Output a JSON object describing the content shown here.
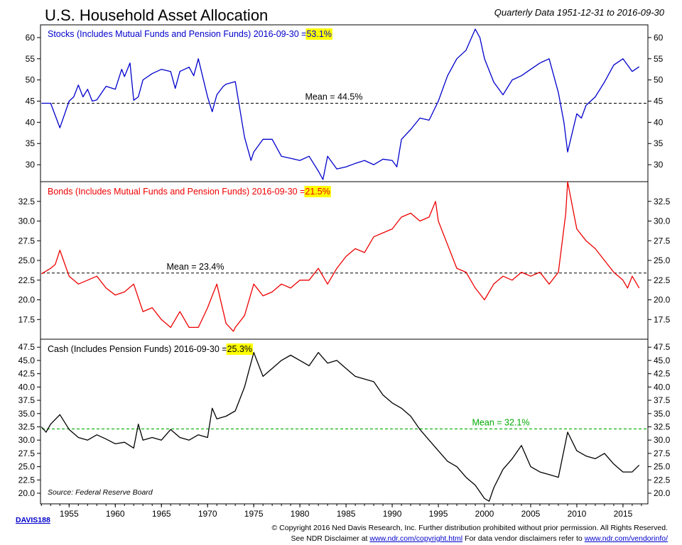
{
  "header": {
    "title": "U.S. Household Asset Allocation",
    "subtitle": "Quarterly Data 1951-12-31 to 2016-09-30"
  },
  "chart_data": [
    {
      "type": "line",
      "name": "stocks",
      "label_prefix": "Stocks (Includes Mutual Funds and Pension Funds) 2016-09-30 = ",
      "last_value_label": "53.1%",
      "color": "#0000cc",
      "ylim": [
        26,
        63
      ],
      "yticks": [
        "30",
        "35",
        "40",
        "45",
        "50",
        "55",
        "60"
      ],
      "mean": 44.5,
      "mean_label": "Mean = 44.5%",
      "mean_color": "#000000",
      "x": [
        1952,
        1953,
        1954,
        1955,
        1955.5,
        1956,
        1956.5,
        1957,
        1957.5,
        1958,
        1959,
        1960,
        1960.7,
        1961,
        1961.6,
        1962,
        1962.5,
        1963,
        1964,
        1965,
        1966,
        1966.5,
        1967,
        1968,
        1968.5,
        1969,
        1969.5,
        1970,
        1970.5,
        1971,
        1971.7,
        1972,
        1973,
        1974,
        1974.7,
        1975,
        1976,
        1977,
        1978,
        1979,
        1980,
        1981,
        1982,
        1982.5,
        1983,
        1984,
        1985,
        1986,
        1987,
        1988,
        1989,
        1990,
        1990.5,
        1991,
        1992,
        1993,
        1994,
        1995,
        1996,
        1997,
        1998,
        1999,
        1999.5,
        2000,
        2001,
        2002,
        2003,
        2004,
        2005,
        2006,
        2007,
        2008,
        2008.6,
        2009,
        2010,
        2010.5,
        2011,
        2012,
        2013,
        2014,
        2015,
        2016,
        2016.75
      ],
      "y": [
        44.5,
        44.5,
        38.7,
        45,
        46,
        48.8,
        46,
        47.8,
        45,
        45.3,
        48.5,
        47.8,
        52.5,
        50.8,
        54,
        45.2,
        46,
        50,
        51.5,
        52.5,
        52,
        48,
        52,
        53,
        51,
        55,
        50.5,
        46,
        42.5,
        46.5,
        48.5,
        49,
        49.6,
        36.5,
        31,
        33,
        36,
        36,
        32,
        31.5,
        31,
        32,
        28.5,
        26.5,
        32,
        29,
        29.5,
        30.3,
        31,
        30,
        31.3,
        31,
        29.5,
        36,
        38.3,
        41,
        40.5,
        45,
        51,
        55,
        57,
        62,
        60,
        55,
        49.5,
        46.5,
        50,
        51,
        52.5,
        54,
        55,
        47,
        40,
        33,
        42,
        41,
        44,
        46,
        49.5,
        53.5,
        55,
        52,
        53.1
      ]
    },
    {
      "type": "line",
      "name": "bonds",
      "label_prefix": "Bonds (Includes Mutual Funds and Pension Funds) 2016-09-30 = ",
      "last_value_label": "21.5%",
      "color": "#ee0000",
      "ylim": [
        15,
        35
      ],
      "yticks": [
        "17.5",
        "20.0",
        "22.5",
        "25.0",
        "27.5",
        "30.0",
        "32.5"
      ],
      "mean": 23.4,
      "mean_label": "Mean = 23.4%",
      "mean_color": "#000000",
      "x": [
        1952,
        1953,
        1953.5,
        1954,
        1955,
        1956,
        1957,
        1958,
        1959,
        1960,
        1961,
        1962,
        1963,
        1964,
        1965,
        1966,
        1967,
        1968,
        1969,
        1970,
        1970.5,
        1971,
        1972,
        1972.8,
        1973,
        1974,
        1975,
        1976,
        1977,
        1978,
        1979,
        1980,
        1981,
        1982,
        1983,
        1984,
        1985,
        1986,
        1987,
        1988,
        1989,
        1990,
        1991,
        1992,
        1993,
        1994,
        1994.7,
        1995,
        1996,
        1997,
        1998,
        1999,
        2000,
        2001,
        2002,
        2003,
        2004,
        2005,
        2006,
        2007,
        2008,
        2008.8,
        2009,
        2009.5,
        2010,
        2011,
        2012,
        2013,
        2014,
        2015,
        2015.5,
        2016,
        2016.75
      ],
      "y": [
        23.3,
        24,
        24.5,
        26.3,
        23,
        22,
        22.5,
        23,
        21.5,
        20.6,
        21,
        22,
        18.5,
        19,
        17.5,
        16.5,
        18.5,
        16.5,
        16.5,
        19,
        20.5,
        22,
        17,
        16,
        16.5,
        18,
        22,
        20.5,
        21,
        22,
        21.5,
        22.5,
        22.5,
        24,
        22,
        24,
        25.5,
        26.5,
        26,
        28,
        28.5,
        29,
        30.5,
        31,
        30,
        30.5,
        32.5,
        30,
        27,
        24,
        23.5,
        21.5,
        20,
        22,
        23,
        22.5,
        23.5,
        23,
        23.5,
        22,
        23.5,
        31,
        35,
        32,
        29,
        27.5,
        26.5,
        25,
        23.5,
        22.5,
        21.5,
        23,
        21.5
      ]
    },
    {
      "type": "line",
      "name": "cash",
      "label_prefix": "Cash (Includes Pension Funds) 2016-09-30 = ",
      "last_value_label": "25.3%",
      "color": "#000000",
      "ylim": [
        18,
        49
      ],
      "yticks": [
        "20.0",
        "22.5",
        "25.0",
        "27.5",
        "30.0",
        "32.5",
        "35.0",
        "37.5",
        "40.0",
        "42.5",
        "45.0",
        "47.5"
      ],
      "mean": 32.1,
      "mean_label": "Mean = 32.1%",
      "mean_color": "#00aa00",
      "x": [
        1952,
        1952.5,
        1953,
        1954,
        1955,
        1956,
        1957,
        1958,
        1959,
        1960,
        1961,
        1962,
        1962.5,
        1963,
        1964,
        1965,
        1966,
        1967,
        1968,
        1969,
        1970,
        1970.5,
        1971,
        1972,
        1973,
        1974,
        1975,
        1976,
        1977,
        1978,
        1979,
        1980,
        1981,
        1982,
        1983,
        1984,
        1985,
        1986,
        1987,
        1988,
        1989,
        1990,
        1991,
        1992,
        1993,
        1994,
        1995,
        1996,
        1997,
        1998,
        1999,
        2000,
        2000.5,
        2001,
        2002,
        2003,
        2004,
        2005,
        2006,
        2007,
        2008,
        2009,
        2010,
        2011,
        2012,
        2013,
        2014,
        2015,
        2016,
        2016.75
      ],
      "y": [
        32.5,
        31.5,
        33,
        34.8,
        32,
        30.5,
        30,
        31,
        30.2,
        29.3,
        29.6,
        28.5,
        33,
        30,
        30.5,
        30,
        32,
        30.5,
        30,
        31,
        30.5,
        36,
        34,
        34.5,
        35.5,
        40,
        46.5,
        42,
        43.5,
        45,
        46,
        45,
        44,
        46.5,
        44.5,
        45,
        43.5,
        42,
        41.5,
        41,
        38.5,
        37,
        36,
        34.5,
        32,
        30,
        28,
        26,
        25,
        23,
        21.5,
        19,
        18.5,
        21,
        24.5,
        26.5,
        29,
        25,
        24,
        23.5,
        23,
        31.5,
        28,
        27,
        26.5,
        27.5,
        25.5,
        24,
        24,
        25.3
      ]
    }
  ],
  "x_axis": {
    "min": 1951.9,
    "max": 2017.7,
    "ticks": [
      1955,
      1960,
      1965,
      1970,
      1975,
      1980,
      1985,
      1990,
      1995,
      2000,
      2005,
      2010,
      2015
    ],
    "tick_labels": [
      "1955",
      "1960",
      "1965",
      "1970",
      "1975",
      "1980",
      "1985",
      "1990",
      "1995",
      "2000",
      "2005",
      "2010",
      "2015"
    ]
  },
  "source": "Source:  Federal Reserve Board",
  "reference_code": "DAVIS188",
  "footer": {
    "line1": "© Copyright 2016 Ned Davis Research, Inc. Further distribution prohibited without prior permission. All Rights Reserved.",
    "line2_a": "See NDR Disclaimer at ",
    "link1": "www.ndr.com/copyright.html",
    "line2_b": "  For data vendor disclaimers refer to ",
    "link2": "www.ndr.com/vendorinfo/"
  }
}
